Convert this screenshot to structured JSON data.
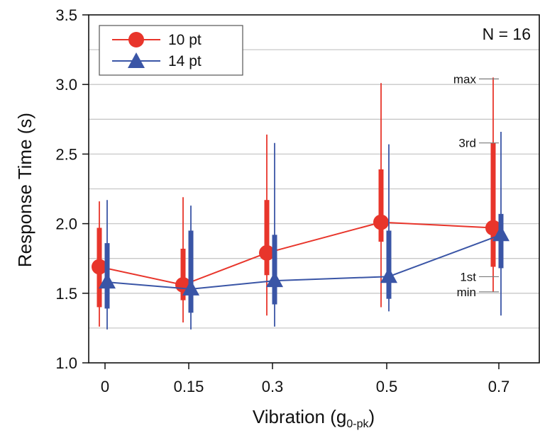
{
  "chart_data": {
    "type": "line",
    "xlabel": "Vibration (g",
    "xlabel_subscript": "0-pk",
    "xlabel_suffix": ")",
    "ylabel": "Response Time (s)",
    "categories": [
      "0",
      "0.15",
      "0.3",
      "0.5",
      "0.7"
    ],
    "ylim": [
      1.0,
      3.5
    ],
    "yticks": [
      "1.0",
      "1.5",
      "2.0",
      "2.5",
      "3.0",
      "3.5"
    ],
    "grid": true,
    "legend_position": "top-left",
    "annotation": "N = 16",
    "box_annotations": {
      "max": "max",
      "q3": "3rd",
      "q1": "1st",
      "min": "min"
    },
    "series": [
      {
        "name": "10 pt",
        "color": "#e8352b",
        "marker": "circle",
        "mean": [
          1.69,
          1.56,
          1.79,
          2.01,
          1.97
        ],
        "min": [
          1.26,
          1.29,
          1.34,
          1.4,
          1.51
        ],
        "q1": [
          1.4,
          1.45,
          1.63,
          1.87,
          1.69
        ],
        "q3": [
          1.97,
          1.82,
          2.17,
          2.39,
          2.58
        ],
        "max": [
          2.16,
          2.19,
          2.64,
          3.01,
          3.05
        ]
      },
      {
        "name": "14 pt",
        "color": "#3a55a6",
        "marker": "triangle",
        "mean": [
          1.58,
          1.53,
          1.59,
          1.62,
          1.92
        ],
        "min": [
          1.24,
          1.24,
          1.26,
          1.37,
          1.34
        ],
        "q1": [
          1.39,
          1.36,
          1.42,
          1.46,
          1.68
        ],
        "q3": [
          1.86,
          1.95,
          1.92,
          1.95,
          2.07
        ],
        "max": [
          2.17,
          2.13,
          2.58,
          2.57,
          2.66
        ]
      }
    ]
  }
}
